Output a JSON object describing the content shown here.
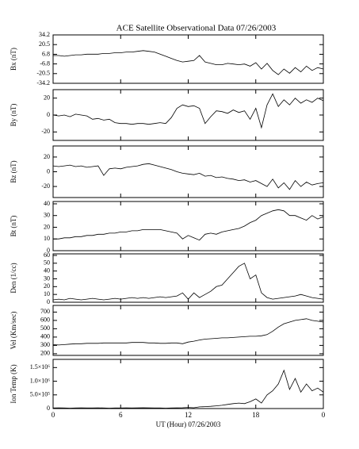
{
  "chart_data": [
    {
      "type": "line",
      "title": "ACE Satellite Observational Data   07/26/2003",
      "ylabel": "Bx (nT)",
      "color": "#000000",
      "x": [
        0,
        0.5,
        1,
        1.5,
        2,
        2.5,
        3,
        3.5,
        4,
        4.5,
        5,
        5.5,
        6,
        6.5,
        7,
        7.5,
        8,
        8.5,
        9,
        9.5,
        10,
        10.5,
        11,
        11.5,
        12,
        12.5,
        13,
        13.5,
        14,
        14.5,
        15,
        15.5,
        16,
        16.5,
        17,
        17.5,
        18,
        18.5,
        19,
        19.5,
        20,
        20.5,
        21,
        21.5,
        22,
        22.5,
        23,
        23.5,
        24
      ],
      "values": [
        5,
        5,
        4,
        5,
        6,
        6,
        7,
        7,
        7,
        8,
        8,
        9,
        9,
        10,
        10,
        11,
        12,
        11,
        10,
        7,
        4,
        1,
        -2,
        -4,
        -3,
        -2,
        5,
        -4,
        -6,
        -8,
        -8,
        -6,
        -7,
        -8,
        -7,
        -10,
        -5,
        -14,
        -6,
        -16,
        -22,
        -14,
        -20,
        -12,
        -18,
        -10,
        -16,
        -12,
        -14
      ],
      "xlim": [
        0,
        24
      ],
      "ylim": [
        -34.2,
        34.2
      ],
      "yticks": [
        34.2,
        20.5,
        6.8,
        -6.8,
        -20.5,
        -34.2
      ]
    },
    {
      "type": "line",
      "ylabel": "By (nT)",
      "color": "#000000",
      "x": [
        0,
        0.5,
        1,
        1.5,
        2,
        2.5,
        3,
        3.5,
        4,
        4.5,
        5,
        5.5,
        6,
        6.5,
        7,
        7.5,
        8,
        8.5,
        9,
        9.5,
        10,
        10.5,
        11,
        11.5,
        12,
        12.5,
        13,
        13.5,
        14,
        14.5,
        15,
        15.5,
        16,
        16.5,
        17,
        17.5,
        18,
        18.5,
        19,
        19.5,
        20,
        20.5,
        21,
        21.5,
        22,
        22.5,
        23,
        23.5,
        24
      ],
      "values": [
        0,
        -1,
        0,
        -2,
        1,
        0,
        -1,
        -5,
        -4,
        -6,
        -5,
        -9,
        -10,
        -10,
        -11,
        -10,
        -10,
        -11,
        -10,
        -9,
        -10,
        -3,
        8,
        12,
        10,
        11,
        8,
        -10,
        -2,
        5,
        4,
        2,
        6,
        3,
        5,
        -5,
        8,
        -15,
        12,
        25,
        10,
        18,
        12,
        20,
        14,
        18,
        15,
        20,
        17
      ],
      "xlim": [
        0,
        24
      ],
      "ylim": [
        -30,
        30
      ],
      "yticks": [
        20,
        0,
        -20
      ]
    },
    {
      "type": "line",
      "ylabel": "Bz (nT)",
      "color": "#000000",
      "x": [
        0,
        0.5,
        1,
        1.5,
        2,
        2.5,
        3,
        3.5,
        4,
        4.5,
        5,
        5.5,
        6,
        6.5,
        7,
        7.5,
        8,
        8.5,
        9,
        9.5,
        10,
        10.5,
        11,
        11.5,
        12,
        12.5,
        13,
        13.5,
        14,
        14.5,
        15,
        15.5,
        16,
        16.5,
        17,
        17.5,
        18,
        18.5,
        19,
        19.5,
        20,
        20.5,
        21,
        21.5,
        22,
        22.5,
        23,
        23.5,
        24
      ],
      "values": [
        8,
        7,
        8,
        9,
        7,
        8,
        6,
        7,
        8,
        -5,
        4,
        5,
        4,
        6,
        7,
        8,
        10,
        11,
        9,
        7,
        5,
        3,
        0,
        -2,
        -3,
        -4,
        -2,
        -6,
        -5,
        -8,
        -7,
        -9,
        -10,
        -12,
        -11,
        -14,
        -12,
        -16,
        -20,
        -10,
        -22,
        -15,
        -24,
        -12,
        -20,
        -14,
        -18,
        -16,
        -15
      ],
      "xlim": [
        0,
        24
      ],
      "ylim": [
        -35,
        35
      ],
      "yticks": [
        20,
        0,
        -20
      ]
    },
    {
      "type": "line",
      "ylabel": "Bt (nT)",
      "color": "#000000",
      "x": [
        0,
        0.5,
        1,
        1.5,
        2,
        2.5,
        3,
        3.5,
        4,
        4.5,
        5,
        5.5,
        6,
        6.5,
        7,
        7.5,
        8,
        8.5,
        9,
        9.5,
        10,
        10.5,
        11,
        11.5,
        12,
        12.5,
        13,
        13.5,
        14,
        14.5,
        15,
        15.5,
        16,
        16.5,
        17,
        17.5,
        18,
        18.5,
        19,
        19.5,
        20,
        20.5,
        21,
        21.5,
        22,
        22.5,
        23,
        23.5,
        24
      ],
      "values": [
        10,
        10,
        11,
        11,
        12,
        12,
        13,
        13,
        14,
        14,
        15,
        15,
        16,
        16,
        17,
        17,
        18,
        18,
        18,
        18,
        17,
        16,
        15,
        10,
        13,
        11,
        9,
        14,
        15,
        14,
        16,
        17,
        18,
        19,
        21,
        24,
        26,
        30,
        32,
        34,
        35,
        34,
        30,
        30,
        28,
        26,
        30,
        27,
        29
      ],
      "xlim": [
        0,
        24
      ],
      "ylim": [
        0,
        42
      ],
      "yticks": [
        0,
        10,
        20,
        30,
        40
      ]
    },
    {
      "type": "line",
      "ylabel": "Den (1/cc)",
      "color": "#000000",
      "x": [
        0,
        0.5,
        1,
        1.5,
        2,
        2.5,
        3,
        3.5,
        4,
        4.5,
        5,
        5.5,
        6,
        6.5,
        7,
        7.5,
        8,
        8.5,
        9,
        9.5,
        10,
        10.5,
        11,
        11.5,
        12,
        12.5,
        13,
        13.5,
        14,
        14.5,
        15,
        15.5,
        16,
        16.5,
        17,
        17.5,
        18,
        18.5,
        19,
        19.5,
        20,
        20.5,
        21,
        21.5,
        22,
        22.5,
        23,
        23.5,
        24
      ],
      "values": [
        3,
        4,
        3,
        5,
        4,
        3,
        4,
        5,
        4,
        3,
        4,
        5,
        4,
        5,
        6,
        5,
        6,
        5,
        6,
        7,
        6,
        7,
        8,
        12,
        4,
        12,
        6,
        10,
        14,
        20,
        22,
        30,
        38,
        46,
        50,
        30,
        35,
        12,
        6,
        4,
        5,
        6,
        7,
        8,
        10,
        8,
        6,
        5,
        4
      ],
      "xlim": [
        0,
        24
      ],
      "ylim": [
        0,
        62
      ],
      "yticks": [
        0,
        10,
        20,
        30,
        40,
        50,
        60
      ]
    },
    {
      "type": "line",
      "ylabel": "Vel (Km/sec)",
      "color": "#000000",
      "x": [
        0,
        0.5,
        1,
        1.5,
        2,
        2.5,
        3,
        3.5,
        4,
        4.5,
        5,
        5.5,
        6,
        6.5,
        7,
        7.5,
        8,
        8.5,
        9,
        9.5,
        10,
        10.5,
        11,
        11.5,
        12,
        12.5,
        13,
        13.5,
        14,
        14.5,
        15,
        15.5,
        16,
        16.5,
        17,
        17.5,
        18,
        18.5,
        19,
        19.5,
        20,
        20.5,
        21,
        21.5,
        22,
        22.5,
        23,
        23.5,
        24
      ],
      "values": [
        310,
        305,
        310,
        315,
        320,
        320,
        325,
        325,
        325,
        330,
        330,
        330,
        330,
        330,
        335,
        335,
        335,
        330,
        330,
        325,
        325,
        330,
        330,
        320,
        340,
        350,
        365,
        375,
        380,
        385,
        390,
        390,
        395,
        400,
        405,
        410,
        410,
        415,
        430,
        470,
        520,
        560,
        580,
        600,
        610,
        620,
        600,
        590,
        580
      ],
      "xlim": [
        0,
        24
      ],
      "ylim": [
        180,
        780
      ],
      "yticks": [
        200,
        300,
        400,
        500,
        600,
        700
      ]
    },
    {
      "type": "line",
      "ylabel": "Ion Temp (K)",
      "xlabel": "UT (Hour)   07/26/2003",
      "color": "#000000",
      "x": [
        0,
        0.5,
        1,
        1.5,
        2,
        2.5,
        3,
        3.5,
        4,
        4.5,
        5,
        5.5,
        6,
        6.5,
        7,
        7.5,
        8,
        8.5,
        9,
        9.5,
        10,
        10.5,
        11,
        11.5,
        12,
        12.5,
        13,
        13.5,
        14,
        14.5,
        15,
        15.5,
        16,
        16.5,
        17,
        17.5,
        18,
        18.5,
        19,
        19.5,
        20,
        20.5,
        21,
        21.5,
        22,
        22.5,
        23,
        23.5,
        24
      ],
      "values": [
        20000,
        25000,
        20000,
        15000,
        20000,
        25000,
        20000,
        20000,
        25000,
        20000,
        15000,
        20000,
        20000,
        25000,
        20000,
        25000,
        30000,
        25000,
        20000,
        20000,
        15000,
        20000,
        25000,
        30000,
        40000,
        30000,
        60000,
        70000,
        80000,
        100000,
        120000,
        150000,
        180000,
        200000,
        180000,
        250000,
        350000,
        200000,
        500000,
        650000,
        900000,
        1400000,
        700000,
        1100000,
        600000,
        900000,
        650000,
        750000,
        600000
      ],
      "xlim": [
        0,
        24
      ],
      "ylim": [
        0,
        1800000
      ],
      "yticks": [
        0,
        {
          "value": 500000,
          "label": "5.0×10⁵"
        },
        {
          "value": 1000000,
          "label": "1.0×10⁶"
        },
        {
          "value": 1500000,
          "label": "1.5×10⁶"
        }
      ],
      "xticks": [
        0,
        6,
        12,
        18,
        {
          "value": 24,
          "label": "0"
        }
      ]
    }
  ]
}
